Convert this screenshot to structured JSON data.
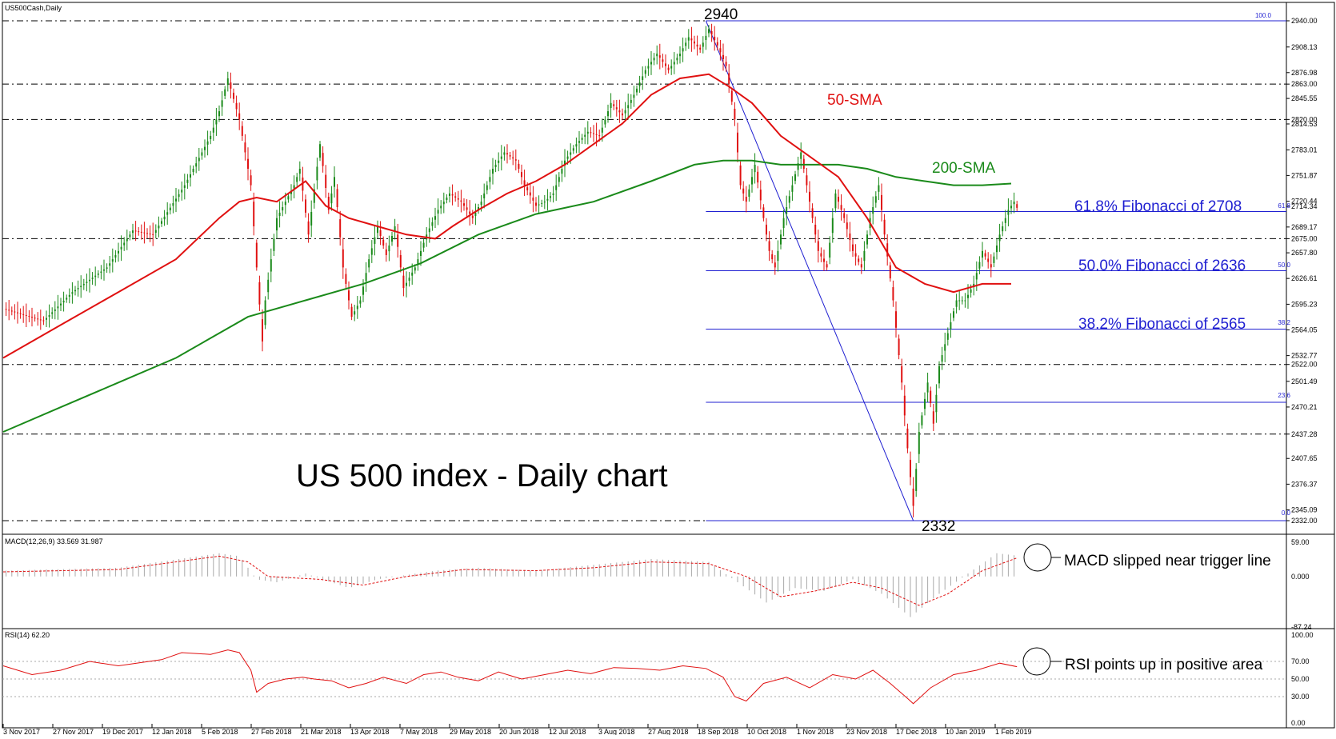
{
  "window": {
    "symbol_title": "US500Cash,Daily",
    "chart_title": "US 500 index - Daily chart"
  },
  "colors": {
    "background": "#ffffff",
    "candle_up": "#1a8a1a",
    "candle_down": "#e01010",
    "sma50": "#e01010",
    "sma200": "#1a8a1a",
    "fibonacci": "#1f1fd1",
    "level_line": "#000000",
    "macd_hist": "#a9a9a9",
    "macd_signal": "#e01010",
    "rsi_line": "#e01010",
    "rsi_level": "#a9a9a9"
  },
  "annotations": {
    "peak": "2940",
    "trough": "2332",
    "sma50": "50-SMA",
    "sma200": "200-SMA",
    "fib_618": "61.8% Fibonacci of 2708",
    "fib_500": "50.0% Fibonacci of 2636",
    "fib_382": "38.2% Fibonacci of 2565",
    "macd_note": "MACD slipped near trigger line",
    "rsi_note": "RSI points up in positive area"
  },
  "fib_small_labels": {
    "f100": "100.0",
    "f618": "61.8",
    "f500": "50.0",
    "f382": "38.2",
    "f236": "23.6",
    "f0": "0.0"
  },
  "indicators": {
    "macd_label": "MACD(12,26,9) 33.569 31.987",
    "rsi_label": "RSI(14) 62.20"
  },
  "chart_data": {
    "type": "line",
    "title": "US 500 index - Daily chart",
    "symbol": "US500Cash,Daily",
    "y_axis_labels": [
      "2940.00",
      "2908.13",
      "2876.98",
      "2863.00",
      "2845.55",
      "2820.00",
      "2814.53",
      "2783.01",
      "2751.87",
      "2720.44",
      "2714.34",
      "2689.17",
      "2675.00",
      "2657.80",
      "2626.61",
      "2595.23",
      "2564.05",
      "2532.77",
      "2522.00",
      "2501.49",
      "2470.21",
      "2437.28",
      "2407.65",
      "2376.37",
      "2345.09",
      "2332.00"
    ],
    "ylim": [
      2332,
      2940
    ],
    "x_axis_labels": [
      "3 Nov 2017",
      "27 Nov 2017",
      "19 Dec 2017",
      "12 Jan 2018",
      "5 Feb 2018",
      "27 Feb 2018",
      "21 Mar 2018",
      "13 Apr 2018",
      "7 May 2018",
      "29 May 2018",
      "20 Jun 2018",
      "12 Jul 2018",
      "3 Aug 2018",
      "27 Aug 2018",
      "18 Sep 2018",
      "10 Oct 2018",
      "1 Nov 2018",
      "23 Nov 2018",
      "17 Dec 2018",
      "10 Jan 2019",
      "1 Feb 2019"
    ],
    "price_path": [
      [
        0,
        2590
      ],
      [
        14,
        2575
      ],
      [
        24,
        2610
      ],
      [
        36,
        2640
      ],
      [
        45,
        2685
      ],
      [
        52,
        2680
      ],
      [
        63,
        2740
      ],
      [
        72,
        2800
      ],
      [
        75,
        2830
      ],
      [
        78,
        2870
      ],
      [
        82,
        2820
      ],
      [
        86,
        2740
      ],
      [
        88,
        2640
      ],
      [
        90,
        2550
      ],
      [
        91,
        2600
      ],
      [
        95,
        2700
      ],
      [
        101,
        2740
      ],
      [
        103,
        2760
      ],
      [
        106,
        2680
      ],
      [
        110,
        2790
      ],
      [
        113,
        2710
      ],
      [
        115,
        2750
      ],
      [
        118,
        2640
      ],
      [
        121,
        2580
      ],
      [
        124,
        2600
      ],
      [
        127,
        2650
      ],
      [
        130,
        2690
      ],
      [
        133,
        2655
      ],
      [
        136,
        2690
      ],
      [
        139,
        2615
      ],
      [
        143,
        2640
      ],
      [
        147,
        2680
      ],
      [
        151,
        2710
      ],
      [
        155,
        2730
      ],
      [
        159,
        2720
      ],
      [
        163,
        2700
      ],
      [
        166,
        2720
      ],
      [
        170,
        2760
      ],
      [
        174,
        2780
      ],
      [
        178,
        2770
      ],
      [
        181,
        2740
      ],
      [
        185,
        2715
      ],
      [
        188,
        2720
      ],
      [
        191,
        2730
      ],
      [
        195,
        2770
      ],
      [
        199,
        2790
      ],
      [
        203,
        2805
      ],
      [
        207,
        2800
      ],
      [
        211,
        2840
      ],
      [
        215,
        2825
      ],
      [
        219,
        2850
      ],
      [
        223,
        2880
      ],
      [
        227,
        2900
      ],
      [
        231,
        2880
      ],
      [
        235,
        2900
      ],
      [
        238,
        2920
      ],
      [
        242,
        2905
      ],
      [
        245,
        2930
      ],
      [
        248,
        2910
      ],
      [
        251,
        2885
      ],
      [
        254,
        2820
      ],
      [
        256,
        2740
      ],
      [
        258,
        2720
      ],
      [
        261,
        2765
      ],
      [
        264,
        2700
      ],
      [
        266,
        2660
      ],
      [
        268,
        2640
      ],
      [
        271,
        2700
      ],
      [
        274,
        2740
      ],
      [
        277,
        2780
      ],
      [
        280,
        2720
      ],
      [
        283,
        2660
      ],
      [
        286,
        2640
      ],
      [
        289,
        2730
      ],
      [
        292,
        2700
      ],
      [
        295,
        2660
      ],
      [
        298,
        2640
      ],
      [
        301,
        2700
      ],
      [
        304,
        2740
      ],
      [
        306,
        2680
      ],
      [
        309,
        2600
      ],
      [
        312,
        2500
      ],
      [
        314,
        2420
      ],
      [
        316,
        2350
      ],
      [
        318,
        2440
      ],
      [
        321,
        2500
      ],
      [
        323,
        2450
      ],
      [
        325,
        2520
      ],
      [
        328,
        2560
      ],
      [
        331,
        2600
      ],
      [
        334,
        2600
      ],
      [
        337,
        2620
      ],
      [
        340,
        2660
      ],
      [
        343,
        2640
      ],
      [
        346,
        2680
      ],
      [
        349,
        2710
      ],
      [
        351,
        2720
      ],
      [
        353,
        2705
      ]
    ],
    "sma50_path": [
      [
        0,
        2530
      ],
      [
        20,
        2570
      ],
      [
        40,
        2610
      ],
      [
        60,
        2650
      ],
      [
        75,
        2700
      ],
      [
        82,
        2720
      ],
      [
        88,
        2725
      ],
      [
        95,
        2720
      ],
      [
        105,
        2745
      ],
      [
        112,
        2715
      ],
      [
        120,
        2700
      ],
      [
        130,
        2690
      ],
      [
        140,
        2680
      ],
      [
        150,
        2675
      ],
      [
        156,
        2690
      ],
      [
        165,
        2710
      ],
      [
        175,
        2730
      ],
      [
        185,
        2745
      ],
      [
        195,
        2765
      ],
      [
        205,
        2790
      ],
      [
        215,
        2815
      ],
      [
        225,
        2850
      ],
      [
        235,
        2870
      ],
      [
        245,
        2875
      ],
      [
        252,
        2860
      ],
      [
        260,
        2840
      ],
      [
        270,
        2800
      ],
      [
        280,
        2775
      ],
      [
        290,
        2750
      ],
      [
        300,
        2700
      ],
      [
        310,
        2640
      ],
      [
        320,
        2620
      ],
      [
        330,
        2610
      ],
      [
        340,
        2620
      ],
      [
        350,
        2620
      ]
    ],
    "sma200_path": [
      [
        0,
        2440
      ],
      [
        20,
        2470
      ],
      [
        40,
        2500
      ],
      [
        60,
        2530
      ],
      [
        70,
        2550
      ],
      [
        85,
        2580
      ],
      [
        105,
        2600
      ],
      [
        125,
        2620
      ],
      [
        145,
        2645
      ],
      [
        165,
        2680
      ],
      [
        185,
        2705
      ],
      [
        205,
        2720
      ],
      [
        225,
        2745
      ],
      [
        240,
        2765
      ],
      [
        250,
        2770
      ],
      [
        260,
        2770
      ],
      [
        270,
        2765
      ],
      [
        280,
        2765
      ],
      [
        290,
        2765
      ],
      [
        300,
        2760
      ],
      [
        310,
        2750
      ],
      [
        320,
        2745
      ],
      [
        330,
        2740
      ],
      [
        340,
        2740
      ],
      [
        350,
        2742
      ]
    ],
    "fibonacci": [
      {
        "level": "100.0",
        "value": 2940
      },
      {
        "level": "61.8",
        "value": 2708
      },
      {
        "level": "50.0",
        "value": 2636
      },
      {
        "level": "38.2",
        "value": 2565
      },
      {
        "level": "23.6",
        "value": 2476
      },
      {
        "level": "0.0",
        "value": 2332
      }
    ],
    "horizontal_levels": [
      2940,
      2863,
      2820,
      2675,
      2522,
      2437.28,
      2332
    ],
    "macd": {
      "ylim": [
        -87.24,
        59.0
      ],
      "y_axis_labels": [
        "59.00",
        "0.000",
        "-87.24"
      ],
      "hist_path": [
        [
          0,
          10
        ],
        [
          40,
          15
        ],
        [
          75,
          40
        ],
        [
          82,
          35
        ],
        [
          88,
          -5
        ],
        [
          95,
          -10
        ],
        [
          105,
          5
        ],
        [
          120,
          -20
        ],
        [
          130,
          -5
        ],
        [
          150,
          10
        ],
        [
          165,
          15
        ],
        [
          185,
          10
        ],
        [
          205,
          20
        ],
        [
          225,
          30
        ],
        [
          245,
          25
        ],
        [
          255,
          -10
        ],
        [
          265,
          -45
        ],
        [
          275,
          -20
        ],
        [
          285,
          -25
        ],
        [
          295,
          -5
        ],
        [
          305,
          -30
        ],
        [
          315,
          -70
        ],
        [
          325,
          -30
        ],
        [
          335,
          5
        ],
        [
          345,
          40
        ],
        [
          352,
          36
        ]
      ],
      "signal_path": [
        [
          0,
          8
        ],
        [
          40,
          12
        ],
        [
          75,
          35
        ],
        [
          85,
          25
        ],
        [
          92,
          0
        ],
        [
          110,
          -5
        ],
        [
          125,
          -15
        ],
        [
          140,
          0
        ],
        [
          160,
          12
        ],
        [
          185,
          10
        ],
        [
          205,
          15
        ],
        [
          225,
          25
        ],
        [
          245,
          22
        ],
        [
          258,
          0
        ],
        [
          270,
          -35
        ],
        [
          282,
          -25
        ],
        [
          295,
          -10
        ],
        [
          305,
          -20
        ],
        [
          318,
          -50
        ],
        [
          328,
          -30
        ],
        [
          340,
          10
        ],
        [
          352,
          32
        ]
      ]
    },
    "rsi": {
      "ylim": [
        0,
        100
      ],
      "levels": [
        70,
        50,
        30
      ],
      "y_axis_labels": [
        "100.00",
        "70.00",
        "50.00",
        "30.00",
        "0.00"
      ],
      "path": [
        [
          0,
          65
        ],
        [
          10,
          55
        ],
        [
          20,
          60
        ],
        [
          30,
          70
        ],
        [
          40,
          65
        ],
        [
          55,
          72
        ],
        [
          62,
          80
        ],
        [
          72,
          78
        ],
        [
          78,
          83
        ],
        [
          82,
          80
        ],
        [
          86,
          60
        ],
        [
          88,
          35
        ],
        [
          92,
          45
        ],
        [
          98,
          50
        ],
        [
          104,
          52
        ],
        [
          108,
          50
        ],
        [
          114,
          48
        ],
        [
          120,
          40
        ],
        [
          126,
          45
        ],
        [
          132,
          52
        ],
        [
          140,
          45
        ],
        [
          146,
          55
        ],
        [
          152,
          58
        ],
        [
          158,
          52
        ],
        [
          165,
          48
        ],
        [
          172,
          58
        ],
        [
          180,
          50
        ],
        [
          188,
          55
        ],
        [
          196,
          60
        ],
        [
          204,
          56
        ],
        [
          212,
          63
        ],
        [
          220,
          62
        ],
        [
          228,
          60
        ],
        [
          236,
          65
        ],
        [
          244,
          62
        ],
        [
          250,
          52
        ],
        [
          254,
          30
        ],
        [
          258,
          25
        ],
        [
          264,
          45
        ],
        [
          272,
          52
        ],
        [
          280,
          40
        ],
        [
          288,
          55
        ],
        [
          296,
          50
        ],
        [
          302,
          60
        ],
        [
          308,
          45
        ],
        [
          314,
          28
        ],
        [
          316,
          22
        ],
        [
          322,
          40
        ],
        [
          330,
          55
        ],
        [
          338,
          60
        ],
        [
          346,
          68
        ],
        [
          352,
          64
        ]
      ]
    }
  }
}
